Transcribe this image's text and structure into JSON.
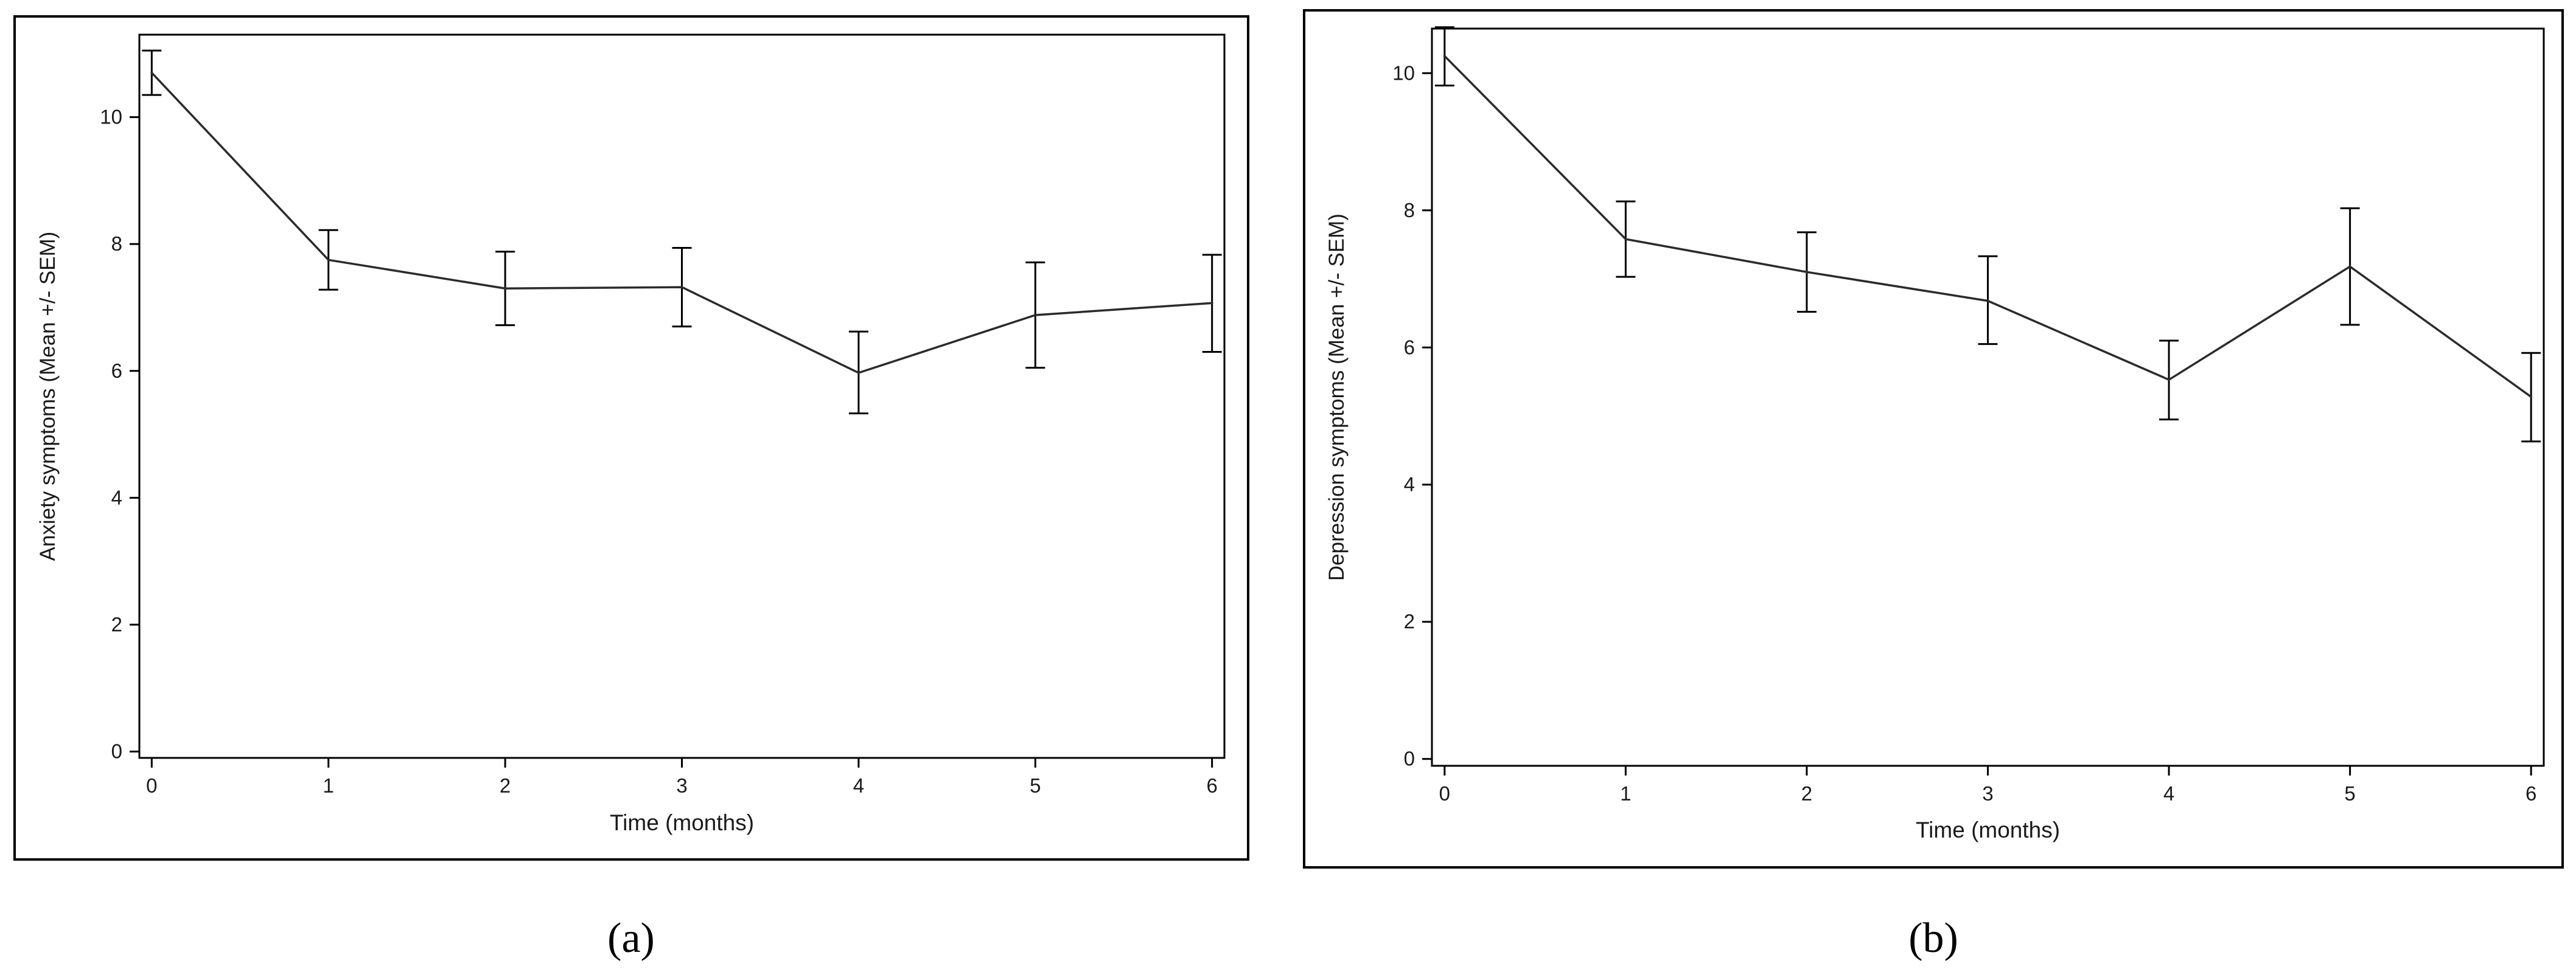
{
  "chart_data": [
    {
      "type": "line",
      "panel_label": "(a)",
      "xlabel": "Time (months)",
      "ylabel": "Anxiety symptoms (Mean +/- SEM)",
      "x": [
        0,
        1,
        2,
        3,
        4,
        5,
        6
      ],
      "y": [
        10.7,
        7.75,
        7.3,
        7.32,
        5.97,
        6.88,
        7.07
      ],
      "err_low": [
        10.35,
        7.28,
        6.72,
        6.7,
        5.33,
        6.05,
        6.3
      ],
      "err_high": [
        11.05,
        8.22,
        7.88,
        7.94,
        6.62,
        7.71,
        7.83
      ],
      "xticks": [
        "0",
        "1",
        "2",
        "3",
        "4",
        "5",
        "6"
      ],
      "yticks": [
        "0",
        "2",
        "4",
        "6",
        "8",
        "10"
      ],
      "xlim": [
        -0.07,
        6.07
      ],
      "ylim": [
        -0.1,
        11.3
      ],
      "grid": false
    },
    {
      "type": "line",
      "panel_label": "(b)",
      "xlabel": "Time (months)",
      "ylabel": "Depression symptoms (Mean +/- SEM)",
      "x": [
        0,
        1,
        2,
        3,
        4,
        5,
        6
      ],
      "y": [
        10.25,
        7.58,
        7.1,
        6.68,
        5.53,
        7.18,
        5.28
      ],
      "err_low": [
        9.82,
        7.03,
        6.52,
        6.05,
        4.95,
        6.33,
        4.63
      ],
      "err_high": [
        10.67,
        8.13,
        7.68,
        7.33,
        6.1,
        8.03,
        5.92
      ],
      "xticks": [
        "0",
        "1",
        "2",
        "3",
        "4",
        "5",
        "6"
      ],
      "yticks": [
        "0",
        "2",
        "4",
        "6",
        "8",
        "10"
      ],
      "xlim": [
        -0.07,
        6.07
      ],
      "ylim": [
        -0.1,
        10.65
      ],
      "grid": false
    }
  ]
}
